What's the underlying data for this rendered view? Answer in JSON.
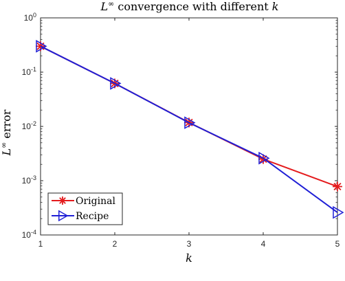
{
  "chart_data": {
    "type": "line",
    "title": {
      "prefix": "L",
      "superscript": "∞",
      "text": " convergence with different ",
      "variable": "k"
    },
    "xlabel": "k",
    "ylabel": {
      "prefix": "L",
      "superscript": "∞",
      "text": " error"
    },
    "x": [
      1,
      2,
      3,
      4,
      5
    ],
    "xlim": [
      1,
      5
    ],
    "ylim": [
      0.0001,
      1
    ],
    "yscale": "log",
    "x_ticks": [
      "1",
      "2",
      "3",
      "4",
      "5"
    ],
    "y_ticks": [
      {
        "base": "10",
        "exp": "0",
        "value": 1
      },
      {
        "base": "10",
        "exp": "-1",
        "value": 0.1
      },
      {
        "base": "10",
        "exp": "-2",
        "value": 0.01
      },
      {
        "base": "10",
        "exp": "-3",
        "value": 0.001
      },
      {
        "base": "10",
        "exp": "-4",
        "value": 0.0001
      }
    ],
    "grid": false,
    "legend_location": "bottom-left",
    "series": [
      {
        "name": "Original",
        "color": "#e41a1c",
        "marker": "asterisk",
        "values": [
          0.3,
          0.062,
          0.0118,
          0.0025,
          0.00078
        ]
      },
      {
        "name": "Recipe",
        "color": "#1f1fd6",
        "marker": "triangle-right",
        "values": [
          0.3,
          0.062,
          0.0117,
          0.0026,
          0.00026
        ]
      }
    ]
  }
}
